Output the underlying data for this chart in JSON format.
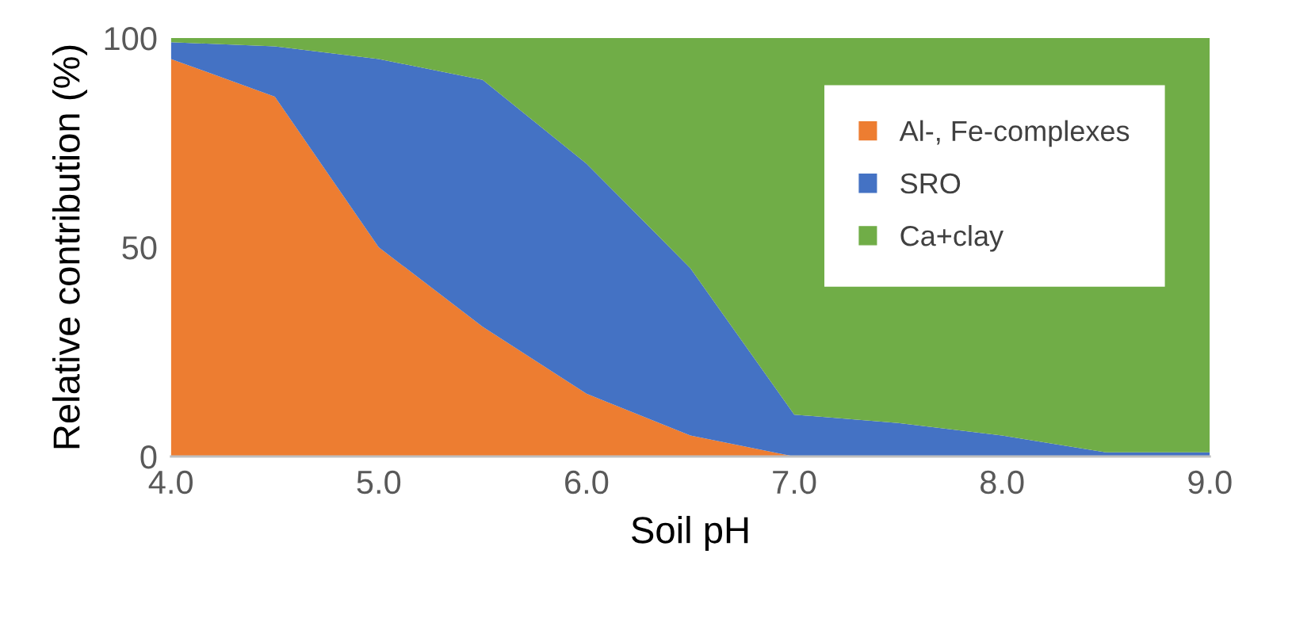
{
  "chart_data": {
    "type": "area",
    "stacked": true,
    "xlabel": "Soil pH",
    "ylabel": "Relative contribution (%)",
    "x": [
      4.0,
      4.5,
      5.0,
      5.5,
      6.0,
      6.5,
      7.0,
      7.5,
      8.0,
      8.5,
      9.0
    ],
    "series": [
      {
        "name": "Al-, Fe-complexes",
        "color": "#ed7d31",
        "values": [
          95,
          86,
          50,
          31,
          15,
          5,
          0,
          0,
          0,
          0,
          0
        ]
      },
      {
        "name": "SRO",
        "color": "#4472c4",
        "values": [
          4,
          12,
          45,
          59,
          55,
          40,
          10,
          8,
          5,
          1,
          1
        ]
      },
      {
        "name": "Ca+clay",
        "color": "#70ad47",
        "values": [
          1,
          2,
          5,
          10,
          30,
          55,
          90,
          92,
          95,
          99,
          99
        ]
      }
    ],
    "xlim": [
      4.0,
      9.0
    ],
    "ylim": [
      0,
      100
    ],
    "xticks": [
      {
        "value": 4,
        "label": "4.0"
      },
      {
        "value": 5,
        "label": "5.0"
      },
      {
        "value": 6,
        "label": "6.0"
      },
      {
        "value": 7,
        "label": "7.0"
      },
      {
        "value": 8,
        "label": "8.0"
      },
      {
        "value": 9,
        "label": "9.0"
      }
    ],
    "yticks": [
      0,
      50,
      100
    ],
    "grid": false,
    "legend": "top right"
  }
}
